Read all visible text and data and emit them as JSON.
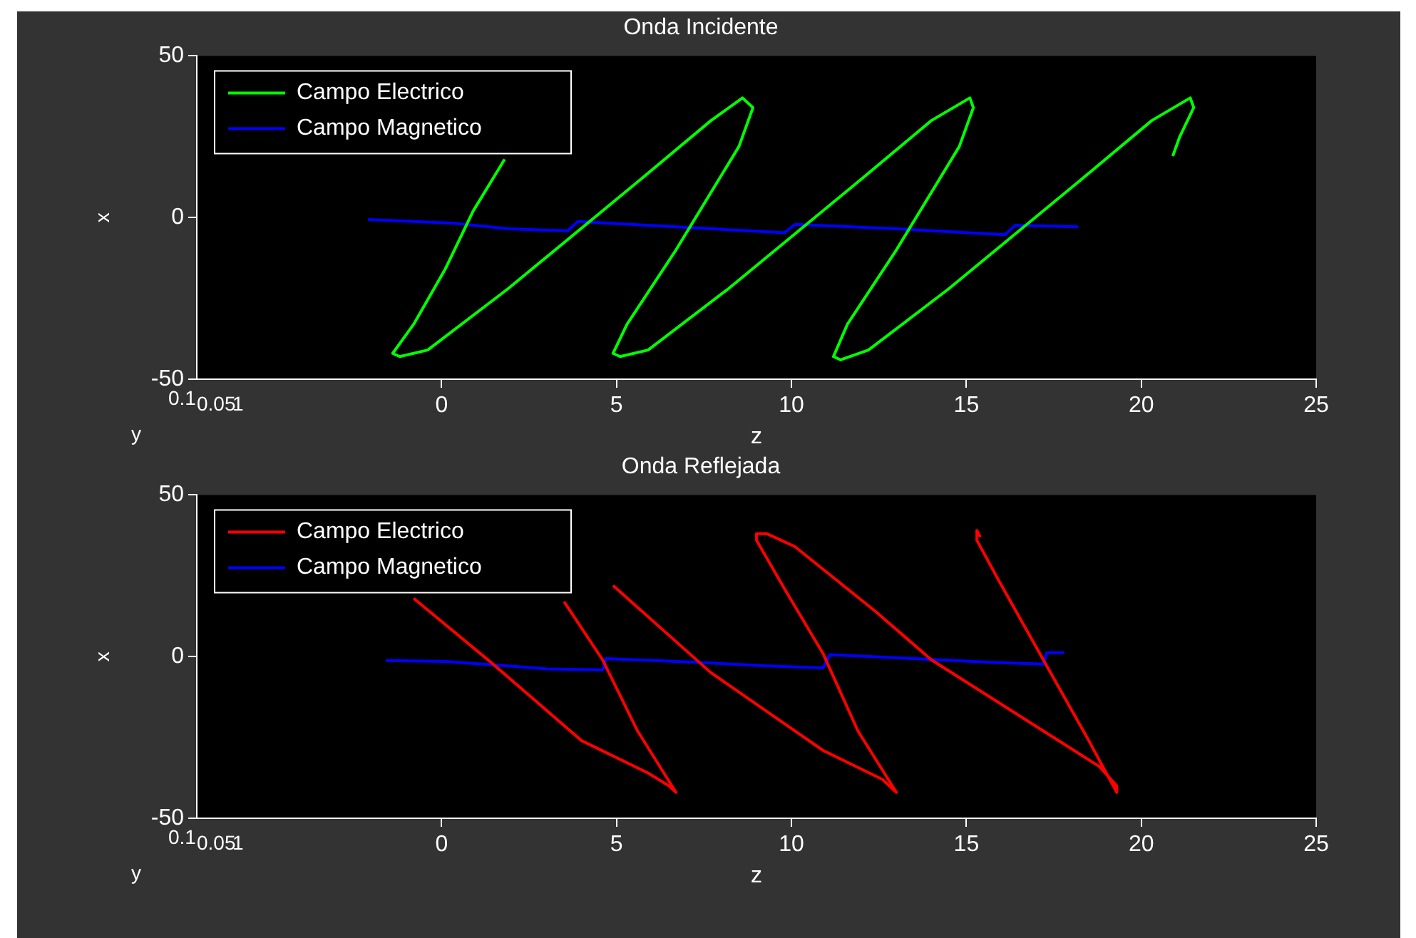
{
  "chart_data": [
    {
      "type": "line",
      "title": "Onda Incidente",
      "xlabel": "z",
      "ylabel": "x",
      "xlim": [
        -7,
        25
      ],
      "xticks": [
        0,
        5,
        10,
        15,
        20,
        25
      ],
      "ylim": [
        -50,
        50
      ],
      "yticks": [
        -50,
        0,
        50
      ],
      "grid": false,
      "legend": "top left",
      "marker": "none",
      "line_style": "solid",
      "annotations": [
        "y",
        "0.1",
        "0.05",
        "1"
      ],
      "series": [
        {
          "name": "Campo Electrico",
          "color": "#00ff00",
          "x": [
            1.8,
            0.9,
            0.1,
            -0.8,
            -1.4,
            -1.2,
            -0.4,
            1.9,
            5.6,
            7.7,
            8.6,
            8.9,
            8.5,
            6.7,
            5.3,
            4.9,
            5.1,
            5.9,
            8.2,
            11.9,
            14.0,
            15.1,
            15.2,
            14.8,
            13.0,
            11.6,
            11.2,
            11.4,
            12.2,
            14.5,
            18.2,
            20.3,
            21.4,
            21.5,
            21.1,
            20.9
          ],
          "values": [
            18,
            2,
            -16,
            -33,
            -42,
            -43,
            -41,
            -22,
            11,
            30,
            37,
            34,
            22,
            -10,
            -33,
            -42,
            -43,
            -41,
            -22,
            11,
            30,
            37,
            34,
            22,
            -10,
            -33,
            -43,
            -44,
            -41,
            -22,
            11,
            30,
            37,
            34,
            25,
            19
          ]
        },
        {
          "name": "Campo Magnetico",
          "color": "#0000ff",
          "x": [
            -2.1,
            0.4,
            1.9,
            3.6,
            3.9,
            6.7,
            9.8,
            10.1,
            13.0,
            16.1,
            16.4,
            18.2
          ],
          "values": [
            -0.6,
            -1.8,
            -3.5,
            -4.1,
            -1.2,
            -2.9,
            -4.7,
            -2.1,
            -3.5,
            -5.3,
            -2.4,
            -2.9
          ]
        }
      ]
    },
    {
      "type": "line",
      "title": "Onda Reflejada",
      "xlabel": "z",
      "ylabel": "x",
      "xlim": [
        -7,
        25
      ],
      "xticks": [
        0,
        5,
        10,
        15,
        20,
        25
      ],
      "ylim": [
        -50,
        50
      ],
      "yticks": [
        -50,
        0,
        50
      ],
      "grid": false,
      "legend": "top left",
      "marker": "none",
      "line_style": "solid",
      "annotations": [
        "y",
        "0.1",
        "0.05",
        "1"
      ],
      "series": [
        {
          "name": "Campo Electrico",
          "color": "#ff0000",
          "x": [
            -0.8,
            1.4,
            4.0,
            5.9,
            6.5,
            6.7,
            5.6,
            4.6,
            3.5,
            4.0,
            4.9,
            7.7,
            10.9,
            12.6,
            13.0,
            11.9,
            10.9,
            9.8,
            9.0,
            9.0,
            9.3,
            10.1,
            12.4,
            14.0,
            17.2,
            18.8,
            19.3,
            19.3,
            18.5,
            17.2,
            15.9,
            15.3,
            15.3,
            15.4
          ],
          "values": [
            18,
            -1.7,
            -26,
            -36,
            -40,
            -42,
            -23,
            -1,
            17,
            null,
            22,
            -5,
            -29,
            -38,
            -42,
            -23,
            1,
            21,
            36,
            38,
            38,
            34,
            14,
            -1,
            -23,
            -34,
            -40,
            -42,
            -26,
            -1,
            24,
            36,
            39,
            37
          ]
        },
        {
          "name": "Campo Magnetico",
          "color": "#0000ff",
          "x": [
            -1.6,
            0.1,
            1.9,
            3.0,
            4.6,
            4.7,
            7.2,
            9.3,
            10.9,
            11.1,
            13.5,
            15.6,
            17.2,
            17.3,
            17.8
          ],
          "values": [
            -1.2,
            -1.5,
            -2.9,
            -3.8,
            -4.1,
            -0.6,
            -1.7,
            -2.9,
            -3.5,
            0.6,
            -0.6,
            -1.7,
            -2.3,
            1.2,
            1.2
          ]
        }
      ]
    }
  ]
}
